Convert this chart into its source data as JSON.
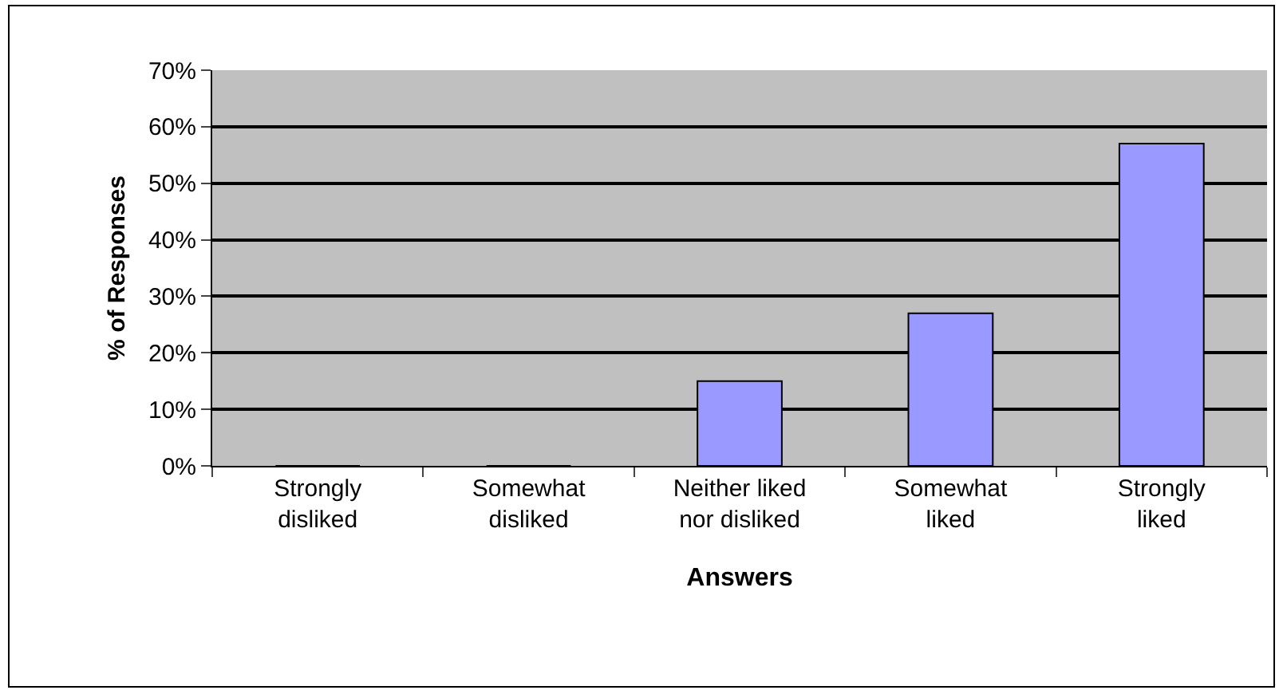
{
  "chart_data": {
    "type": "bar",
    "xlabel": "Answers",
    "ylabel": "% of Responses",
    "categories": [
      "Strongly disliked",
      "Somewhat disliked",
      "Neither liked nor disliked",
      "Somewhat liked",
      "Strongly liked"
    ],
    "values": [
      0,
      0,
      15,
      27,
      57
    ],
    "color": "#9999ff",
    "ylim": [
      0,
      70
    ],
    "yticks": [
      {
        "value": 0,
        "label": "0%"
      },
      {
        "value": 10,
        "label": "10%"
      },
      {
        "value": 20,
        "label": "20%"
      },
      {
        "value": 30,
        "label": "30%"
      },
      {
        "value": 40,
        "label": "40%"
      },
      {
        "value": 50,
        "label": "50%"
      },
      {
        "value": 60,
        "label": "60%"
      },
      {
        "value": 70,
        "label": "70%"
      }
    ],
    "grid": "y"
  }
}
